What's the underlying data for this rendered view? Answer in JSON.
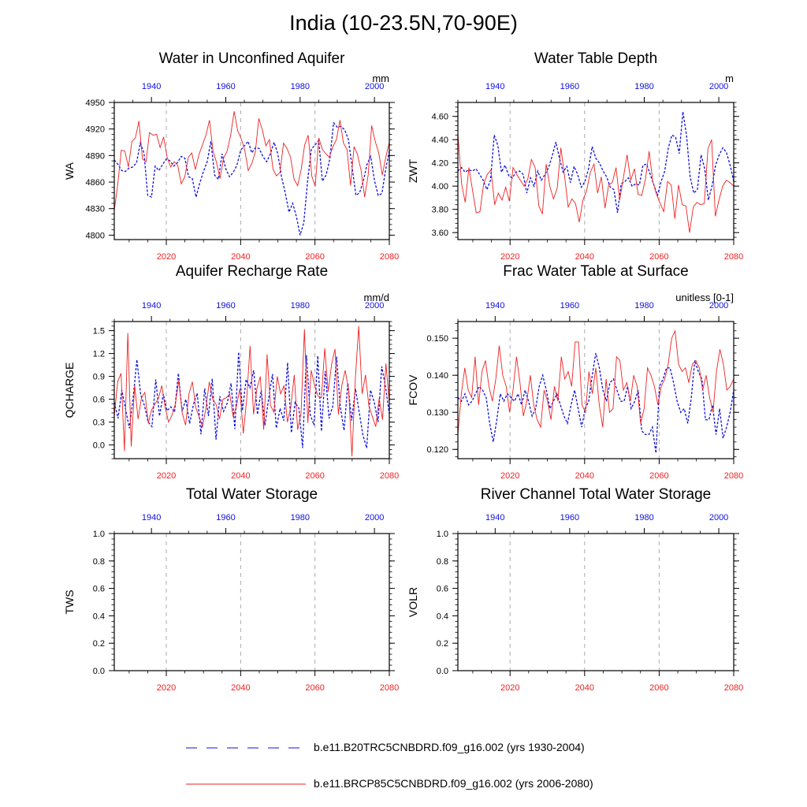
{
  "figure_title": "India (10-23.5N,70-90E)",
  "colors": {
    "historical": "#1010dd",
    "future": "#ee2222",
    "guide": "#aaaaaa",
    "axis": "#000000"
  },
  "axes": {
    "bottom_ticks": [
      2020,
      2040,
      2060,
      2080
    ],
    "top_ticks": [
      1940,
      1960,
      1980,
      2000
    ],
    "bottom_range": [
      2006,
      2080
    ],
    "top_range": [
      1930,
      2004
    ]
  },
  "legend": [
    {
      "label": "b.e11.B20TRC5CNBDRD.f09_g16.002 (yrs 1930-2004)",
      "style": "dashed",
      "color": "#1010dd"
    },
    {
      "label": "b.e11.BRCP85C5CNBDRD.f09_g16.002 (yrs 2006-2080)",
      "style": "solid",
      "color": "#ee2222"
    }
  ],
  "chart_data": [
    {
      "type": "line",
      "title": "Water in Unconfined Aquifer",
      "units": "mm",
      "ylabel": "WA",
      "ylim": [
        4795,
        4950
      ],
      "yticks": [
        4800,
        4830,
        4860,
        4890,
        4920,
        4950
      ],
      "ytick_labels": [
        "4800",
        "4830",
        "4860",
        "4890",
        "4920",
        "4950"
      ],
      "series": [
        {
          "values": [
            4885,
            4880,
            4873,
            4872,
            4876,
            4877,
            4882,
            4904,
            4893,
            4845,
            4843,
            4878,
            4873,
            4880,
            4886,
            4884,
            4878,
            4882,
            4889,
            4887,
            4866,
            4864,
            4843,
            4859,
            4872,
            4883,
            4906,
            4868,
            4863,
            4892,
            4875,
            4866,
            4871,
            4879,
            4896,
            4901,
            4906,
            4893,
            4899,
            4898,
            4889,
            4883,
            4892,
            4905,
            4892,
            4866,
            4848,
            4826,
            4836,
            4821,
            4800,
            4814,
            4860,
            4897,
            4902,
            4907,
            4861,
            4868,
            4886,
            4927,
            4922,
            4923,
            4919,
            4908,
            4877,
            4845,
            4848,
            4861,
            4880,
            4889,
            4862,
            4845,
            4847,
            4874,
            4895
          ]
        },
        {
          "values": [
            4828,
            4858,
            4896,
            4895,
            4877,
            4906,
            4910,
            4929,
            4886,
            4883,
            4916,
            4913,
            4914,
            4899,
            4911,
            4888,
            4877,
            4883,
            4879,
            4858,
            4866,
            4888,
            4893,
            4874,
            4891,
            4902,
            4913,
            4930,
            4895,
            4882,
            4864,
            4887,
            4895,
            4913,
            4940,
            4918,
            4909,
            4896,
            4873,
            4881,
            4894,
            4932,
            4919,
            4901,
            4908,
            4875,
            4867,
            4871,
            4904,
            4898,
            4888,
            4863,
            4856,
            4874,
            4902,
            4913,
            4867,
            4855,
            4910,
            4897,
            4892,
            4888,
            4900,
            4908,
            4930,
            4904,
            4897,
            4856,
            4900,
            4891,
            4873,
            4843,
            4868,
            4924,
            4906,
            4893,
            4868,
            4888,
            4905
          ]
        }
      ]
    },
    {
      "type": "line",
      "title": "Water Table Depth",
      "units": "m",
      "ylabel": "ZWT",
      "ylim": [
        3.54,
        4.72
      ],
      "yticks": [
        3.6,
        3.8,
        4.0,
        4.2,
        4.4,
        4.6
      ],
      "ytick_labels": [
        "3.60",
        "3.80",
        "4.00",
        "4.20",
        "4.40",
        "4.60"
      ],
      "series": [
        {
          "values": [
            4.13,
            4.16,
            4.12,
            4.14,
            4.13,
            4.15,
            4.1,
            4.05,
            3.97,
            4.05,
            4.44,
            4.35,
            4.12,
            4.18,
            4.09,
            4.07,
            4.12,
            4.13,
            4.1,
            3.94,
            4.07,
            4.0,
            4.13,
            4.05,
            4.1,
            4.16,
            4.26,
            4.38,
            4.24,
            4.12,
            4.17,
            4.03,
            4.17,
            4.1,
            3.99,
            4.04,
            4.15,
            4.34,
            4.24,
            4.2,
            4.13,
            4.08,
            3.99,
            3.97,
            3.77,
            4.02,
            4.04,
            4.07,
            4.0,
            4.02,
            4.01,
            4.18,
            4.19,
            4.1,
            4.01,
            3.92,
            4.04,
            4.13,
            4.33,
            4.44,
            4.42,
            4.28,
            4.64,
            4.44,
            4.08,
            3.94,
            3.97,
            4.27,
            4.15,
            3.88,
            4.0,
            4.18,
            4.27,
            4.33,
            4.29,
            4.18,
            4.04
          ]
        },
        {
          "values": [
            4.45,
            4.02,
            3.86,
            4.16,
            3.96,
            3.77,
            3.78,
            4.02,
            4.1,
            4.14,
            3.84,
            3.94,
            3.88,
            3.99,
            3.87,
            4.16,
            4.1,
            4.05,
            4.0,
            4.06,
            4.23,
            4.16,
            3.83,
            3.76,
            4.19,
            4.0,
            3.89,
            3.98,
            4.33,
            4.09,
            3.82,
            3.89,
            3.85,
            3.69,
            3.88,
            3.96,
            4.12,
            4.19,
            3.94,
            4.08,
            3.81,
            4.01,
            4.03,
            4.16,
            3.88,
            4.07,
            4.27,
            4.05,
            4.15,
            3.93,
            3.92,
            4.06,
            4.3,
            4.04,
            3.93,
            3.85,
            3.78,
            4.04,
            4.01,
            3.72,
            4.01,
            3.84,
            3.83,
            3.6,
            3.82,
            3.86,
            3.84,
            3.85,
            4.32,
            4.4,
            3.74,
            3.88,
            4.0,
            4.05,
            4.03,
            4.0
          ]
        }
      ]
    },
    {
      "type": "line",
      "title": "Aquifer Recharge Rate",
      "units": "mm/d",
      "ylabel": "QCHARGE",
      "ylim": [
        -0.18,
        1.62
      ],
      "yticks": [
        0.0,
        0.3,
        0.6,
        0.9,
        1.2,
        1.5
      ],
      "ytick_labels": [
        "0.0",
        "0.3",
        "0.6",
        "0.9",
        "1.2",
        "1.5"
      ],
      "series": [
        {
          "values": [
            0.56,
            0.35,
            0.72,
            0.47,
            0.22,
            0.61,
            1.12,
            0.66,
            0.52,
            0.3,
            0.24,
            0.86,
            0.38,
            0.67,
            0.45,
            0.5,
            0.43,
            0.94,
            0.44,
            0.6,
            0.28,
            0.53,
            0.68,
            0.14,
            0.74,
            0.38,
            0.87,
            0.07,
            0.64,
            0.44,
            0.55,
            0.81,
            0.21,
            1.22,
            0.45,
            0.86,
            0.75,
            0.98,
            0.4,
            0.72,
            0.26,
            0.62,
            0.93,
            0.22,
            0.48,
            0.32,
            1.08,
            0.16,
            0.56,
            0.48,
            -0.04,
            1.18,
            0.4,
            0.26,
            1.17,
            0.18,
            0.97,
            0.35,
            0.51,
            1.16,
            0.5,
            0.19,
            0.81,
            0.32,
            0.74,
            0.43,
            0.13,
            -0.04,
            0.72,
            0.56,
            0.3,
            1.03,
            0.76,
            0.41
          ]
        },
        {
          "values": [
            0.38,
            0.83,
            0.94,
            -0.08,
            1.47,
            -0.02,
            0.78,
            0.34,
            0.62,
            0.69,
            0.29,
            0.46,
            0.54,
            0.61,
            0.78,
            0.49,
            0.3,
            0.39,
            0.54,
            0.85,
            0.42,
            0.26,
            0.67,
            0.83,
            0.49,
            0.37,
            0.24,
            0.48,
            0.83,
            0.6,
            0.53,
            0.34,
            0.6,
            0.62,
            0.67,
            0.37,
            0.51,
            0.74,
            0.15,
            0.6,
            1.3,
            0.4,
            0.74,
            0.9,
            0.2,
            1.19,
            0.52,
            0.43,
            0.9,
            0.67,
            0.78,
            0.3,
            0.5,
            0.92,
            0.2,
            0.42,
            1.52,
            0.29,
            0.98,
            0.78,
            0.64,
            0.62,
            1.27,
            0.7,
            1.06,
            1.26,
            0.4,
            0.78,
            0.98,
            0.73,
            -0.15,
            0.87,
            1.56,
            0.67,
            0.92,
            0.51,
            0.37,
            0.24,
            0.61,
            0.33,
            1.07,
            0.55
          ]
        }
      ]
    },
    {
      "type": "line",
      "title": "Frac Water Table at Surface",
      "units": "unitless [0-1]",
      "ylabel": "FCOV",
      "ylim": [
        0.1175,
        0.1545
      ],
      "yticks": [
        0.12,
        0.13,
        0.14,
        0.15
      ],
      "ytick_labels": [
        "0.120",
        "0.130",
        "0.140",
        "0.150"
      ],
      "series": [
        {
          "values": [
            0.134,
            0.133,
            0.135,
            0.132,
            0.133,
            0.135,
            0.137,
            0.136,
            0.134,
            0.127,
            0.122,
            0.128,
            0.135,
            0.133,
            0.135,
            0.134,
            0.133,
            0.135,
            0.132,
            0.136,
            0.133,
            0.129,
            0.131,
            0.137,
            0.14,
            0.136,
            0.131,
            0.133,
            0.135,
            0.132,
            0.129,
            0.127,
            0.132,
            0.136,
            0.131,
            0.126,
            0.131,
            0.133,
            0.14,
            0.146,
            0.142,
            0.136,
            0.133,
            0.138,
            0.139,
            0.136,
            0.133,
            0.133,
            0.137,
            0.131,
            0.133,
            0.136,
            0.125,
            0.124,
            0.124,
            0.126,
            0.119,
            0.137,
            0.139,
            0.142,
            0.142,
            0.138,
            0.133,
            0.13,
            0.131,
            0.127,
            0.134,
            0.144,
            0.141,
            0.139,
            0.128,
            0.128,
            0.132,
            0.124,
            0.131,
            0.123,
            0.126,
            0.13,
            0.136
          ]
        },
        {
          "values": [
            0.124,
            0.135,
            0.142,
            0.136,
            0.134,
            0.145,
            0.132,
            0.141,
            0.144,
            0.137,
            0.133,
            0.139,
            0.148,
            0.14,
            0.137,
            0.13,
            0.136,
            0.145,
            0.138,
            0.129,
            0.133,
            0.14,
            0.132,
            0.128,
            0.126,
            0.136,
            0.133,
            0.128,
            0.137,
            0.133,
            0.145,
            0.139,
            0.141,
            0.137,
            0.149,
            0.149,
            0.132,
            0.13,
            0.141,
            0.135,
            0.142,
            0.132,
            0.126,
            0.139,
            0.13,
            0.131,
            0.145,
            0.144,
            0.136,
            0.138,
            0.133,
            0.14,
            0.137,
            0.127,
            0.131,
            0.142,
            0.14,
            0.137,
            0.132,
            0.137,
            0.139,
            0.143,
            0.15,
            0.152,
            0.143,
            0.141,
            0.142,
            0.138,
            0.143,
            0.144,
            0.142,
            0.136,
            0.14,
            0.134,
            0.13,
            0.141,
            0.147,
            0.143,
            0.136,
            0.137,
            0.139
          ]
        }
      ]
    },
    {
      "type": "line",
      "title": "Total Water Storage",
      "units": "",
      "ylabel": "TWS",
      "ylim": [
        0.0,
        1.0
      ],
      "yticks": [
        0.0,
        0.2,
        0.4,
        0.6,
        0.8,
        1.0
      ],
      "ytick_labels": [
        "0.0",
        "0.2",
        "0.4",
        "0.6",
        "0.8",
        "1.0"
      ],
      "series": []
    },
    {
      "type": "line",
      "title": "River Channel Total Water Storage",
      "units": "",
      "ylabel": "VOLR",
      "ylim": [
        0.0,
        1.0
      ],
      "yticks": [
        0.0,
        0.2,
        0.4,
        0.6,
        0.8,
        1.0
      ],
      "ytick_labels": [
        "0.0",
        "0.2",
        "0.4",
        "0.6",
        "0.8",
        "1.0"
      ],
      "series": []
    }
  ]
}
